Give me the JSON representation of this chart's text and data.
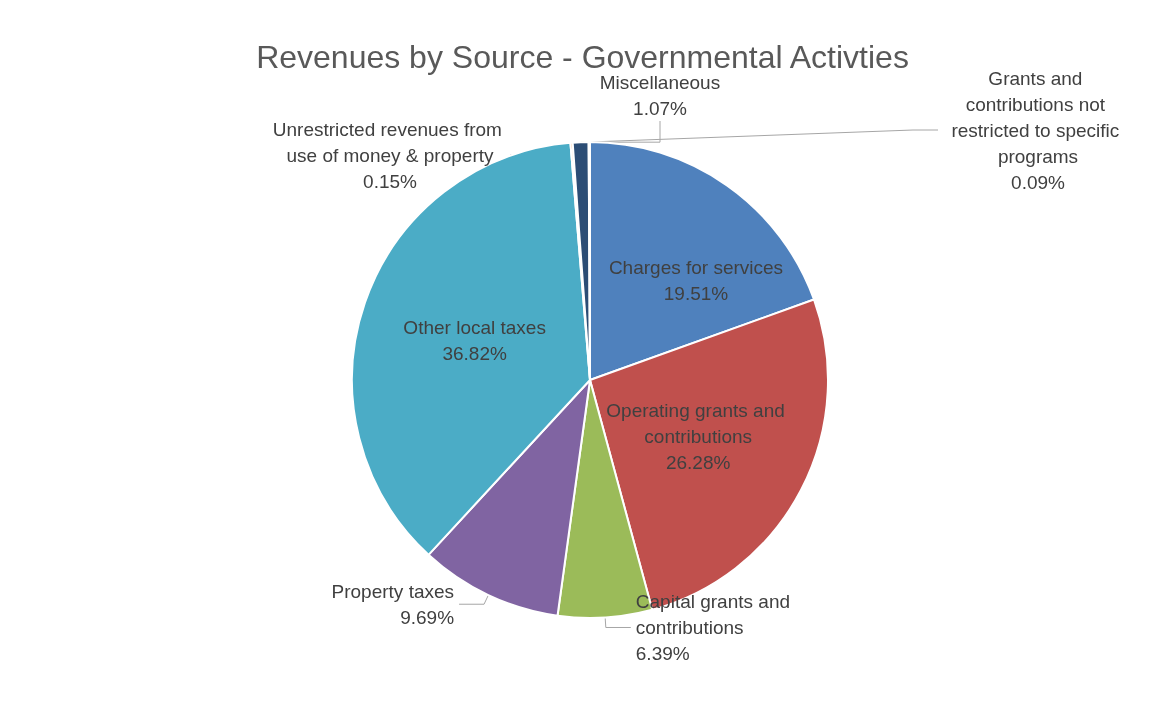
{
  "chart_data": {
    "type": "pie",
    "title": "Revenues by Source - Governmental Activties",
    "categories": [
      "Charges for services",
      "Operating grants and contributions",
      "Capital grants and contributions",
      "Property taxes",
      "Other local taxes",
      "Unrestricted revenues from use of money & property",
      "Miscellaneous",
      "Grants and contributions not restricted to specific programs"
    ],
    "values": [
      19.51,
      26.28,
      6.39,
      9.69,
      36.82,
      0.15,
      1.07,
      0.09
    ],
    "value_labels": [
      "19.51%",
      "26.28%",
      "6.39%",
      "9.69%",
      "36.82%",
      "0.15%",
      "1.07%",
      "0.09%"
    ],
    "colors": [
      "#4f81bd",
      "#c0504d",
      "#9bbb59",
      "#8064a2",
      "#4bacc6",
      "#f79646",
      "#2c4d75",
      "#772c2a"
    ],
    "legend": false
  }
}
